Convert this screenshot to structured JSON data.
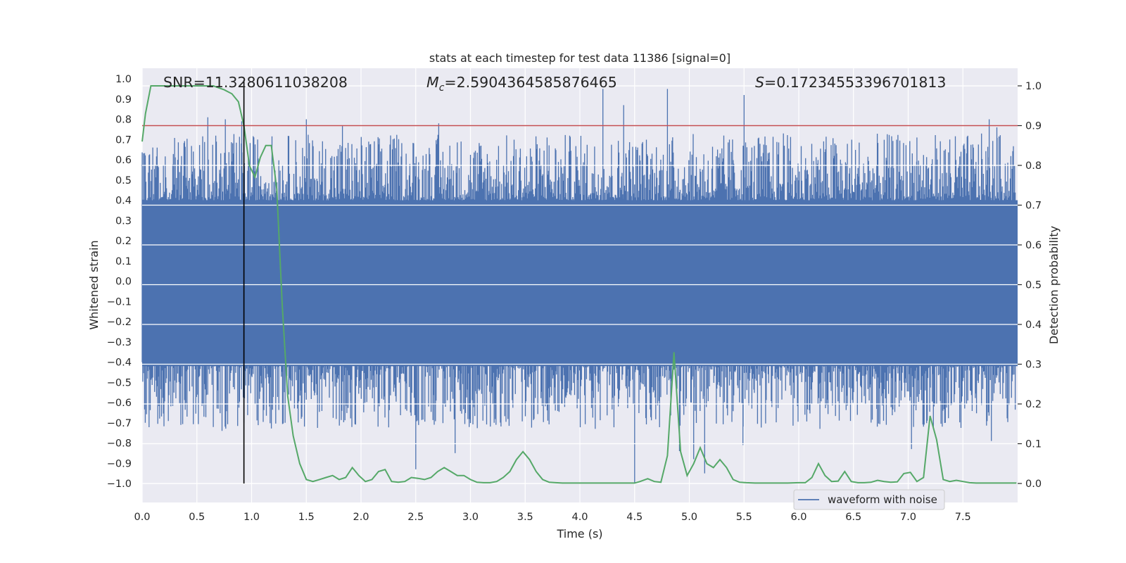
{
  "chart_data": {
    "type": "line",
    "title": "stats at each timestep for test data 11386 [signal=0]",
    "xlabel": "Time (s)",
    "ylabel": "Whitened strain",
    "ylabel_right": "Detection probability",
    "xlim": [
      0.0,
      8.0
    ],
    "ylim": [
      -1.1,
      1.1
    ],
    "ylim_right": [
      -0.05,
      1.05
    ],
    "x_ticks": [
      "0.0",
      "0.5",
      "1.0",
      "1.5",
      "2.0",
      "2.5",
      "3.0",
      "3.5",
      "4.0",
      "4.5",
      "5.0",
      "5.5",
      "6.0",
      "6.5",
      "7.0",
      "7.5"
    ],
    "y_ticks": [
      "1.0",
      "0.9",
      "0.8",
      "0.7",
      "0.6",
      "0.5",
      "0.4",
      "0.3",
      "0.2",
      "0.1",
      "0.0",
      "−0.1",
      "−0.2",
      "−0.3",
      "−0.4",
      "−0.5",
      "−0.6",
      "−0.7",
      "−0.8",
      "−0.9",
      "−1.0"
    ],
    "y_ticks_right": [
      "1.0",
      "0.9",
      "0.8",
      "0.7",
      "0.6",
      "0.5",
      "0.4",
      "0.3",
      "0.2",
      "0.1",
      "0.0"
    ],
    "annotations": {
      "snr": "SNR=11.3280611038208",
      "mc_symbol": "M",
      "mc_subscript": "c",
      "mc_value": "=2.5904364585876465",
      "s_symbol": "S",
      "s_value": "=0.17234553396701813"
    },
    "threshold": 0.9,
    "marker_time": 0.93,
    "legend": {
      "label": "waveform with noise",
      "location": "lower right"
    },
    "series": [
      {
        "name": "waveform with noise",
        "color": "#4c72b0",
        "axis": "left",
        "kind": "noise",
        "band_low": -0.42,
        "band_high": 0.4,
        "peaks_up": [
          [
            0.6,
            0.81
          ],
          [
            0.76,
            0.8
          ],
          [
            0.91,
            0.79
          ],
          [
            1.5,
            0.8
          ],
          [
            1.83,
            0.77
          ],
          [
            2.27,
            0.72
          ],
          [
            2.71,
            0.78
          ],
          [
            3.7,
            0.71
          ],
          [
            4.21,
            0.95
          ],
          [
            4.4,
            0.87
          ],
          [
            4.8,
            0.95
          ],
          [
            5.5,
            0.92
          ],
          [
            5.86,
            0.73
          ],
          [
            6.33,
            0.68
          ],
          [
            7.08,
            0.71
          ],
          [
            7.38,
            0.7
          ],
          [
            7.74,
            0.8
          ],
          [
            7.81,
            0.76
          ]
        ],
        "peaks_down": [
          [
            0.73,
            -0.74
          ],
          [
            0.93,
            -0.7
          ],
          [
            2.5,
            -0.93
          ],
          [
            2.86,
            -0.85
          ],
          [
            4.14,
            -0.73
          ],
          [
            4.5,
            -1.0
          ],
          [
            4.91,
            -0.84
          ],
          [
            5.04,
            -0.88
          ],
          [
            5.14,
            -0.95
          ],
          [
            5.49,
            -0.81
          ],
          [
            6.8,
            -0.71
          ],
          [
            7.03,
            -0.83
          ],
          [
            7.23,
            -0.73
          ],
          [
            7.76,
            -0.79
          ]
        ]
      },
      {
        "name": "detection probability",
        "color": "#55a868",
        "axis": "right",
        "x": [
          0.0,
          0.03,
          0.08,
          0.15,
          0.3,
          0.5,
          0.65,
          0.75,
          0.82,
          0.88,
          0.93,
          0.98,
          1.03,
          1.08,
          1.13,
          1.18,
          1.23,
          1.28,
          1.33,
          1.38,
          1.44,
          1.5,
          1.56,
          1.62,
          1.68,
          1.74,
          1.8,
          1.86,
          1.92,
          1.98,
          2.04,
          2.1,
          2.16,
          2.22,
          2.28,
          2.34,
          2.4,
          2.46,
          2.52,
          2.58,
          2.64,
          2.7,
          2.76,
          2.82,
          2.88,
          2.94,
          3.0,
          3.06,
          3.12,
          3.18,
          3.24,
          3.3,
          3.36,
          3.42,
          3.48,
          3.54,
          3.6,
          3.66,
          3.72,
          3.78,
          3.84,
          3.9,
          4.0,
          4.2,
          4.4,
          4.5,
          4.55,
          4.62,
          4.68,
          4.74,
          4.8,
          4.86,
          4.92,
          4.98,
          5.04,
          5.1,
          5.16,
          5.22,
          5.28,
          5.34,
          5.4,
          5.46,
          5.52,
          5.6,
          5.7,
          5.8,
          5.9,
          6.0,
          6.06,
          6.12,
          6.18,
          6.24,
          6.3,
          6.36,
          6.42,
          6.48,
          6.54,
          6.6,
          6.66,
          6.72,
          6.78,
          6.84,
          6.9,
          6.96,
          7.02,
          7.08,
          7.14,
          7.2,
          7.26,
          7.32,
          7.38,
          7.44,
          7.5,
          7.56,
          7.62,
          7.7,
          7.8,
          7.9,
          7.99
        ],
        "values": [
          0.86,
          0.93,
          1.0,
          1.0,
          1.0,
          1.0,
          1.0,
          0.99,
          0.98,
          0.96,
          0.9,
          0.8,
          0.77,
          0.82,
          0.85,
          0.85,
          0.74,
          0.45,
          0.22,
          0.12,
          0.05,
          0.01,
          0.005,
          0.01,
          0.015,
          0.02,
          0.01,
          0.015,
          0.04,
          0.02,
          0.005,
          0.01,
          0.03,
          0.035,
          0.005,
          0.003,
          0.005,
          0.015,
          0.013,
          0.01,
          0.015,
          0.03,
          0.04,
          0.03,
          0.02,
          0.02,
          0.01,
          0.003,
          0.002,
          0.002,
          0.005,
          0.015,
          0.03,
          0.06,
          0.08,
          0.06,
          0.03,
          0.01,
          0.003,
          0.002,
          0.001,
          0.001,
          0.001,
          0.001,
          0.001,
          0.001,
          0.005,
          0.012,
          0.005,
          0.003,
          0.07,
          0.33,
          0.08,
          0.02,
          0.05,
          0.09,
          0.05,
          0.04,
          0.06,
          0.04,
          0.01,
          0.003,
          0.002,
          0.001,
          0.001,
          0.001,
          0.001,
          0.002,
          0.002,
          0.015,
          0.05,
          0.02,
          0.005,
          0.006,
          0.03,
          0.005,
          0.002,
          0.002,
          0.003,
          0.008,
          0.005,
          0.003,
          0.004,
          0.025,
          0.028,
          0.005,
          0.015,
          0.17,
          0.11,
          0.01,
          0.005,
          0.008,
          0.005,
          0.002,
          0.001,
          0.001,
          0.001,
          0.001,
          0.001
        ]
      },
      {
        "name": "threshold",
        "color": "#c44e52",
        "axis": "right",
        "x": [
          0.0,
          8.0
        ],
        "values": [
          0.9,
          0.9
        ]
      }
    ]
  }
}
